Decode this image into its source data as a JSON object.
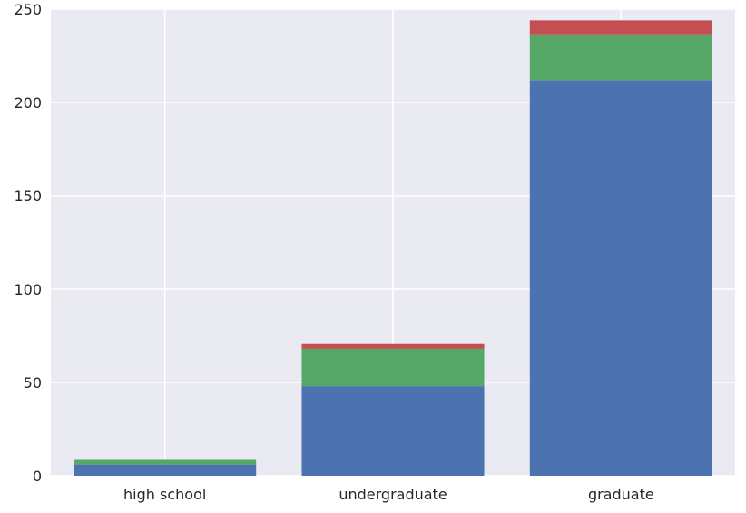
{
  "chart_data": {
    "type": "bar",
    "stacked": true,
    "categories": [
      "high school",
      "undergraduate",
      "graduate"
    ],
    "series": [
      {
        "values": [
          6,
          48,
          212
        ],
        "color": "#4c72b0"
      },
      {
        "values": [
          3,
          20,
          24
        ],
        "color": "#55a868"
      },
      {
        "values": [
          0,
          3,
          8
        ],
        "color": "#c44e52"
      }
    ],
    "ylim": [
      0,
      250
    ],
    "yticks": [
      0,
      50,
      100,
      150,
      200,
      250
    ],
    "grid": true,
    "legend": "none",
    "background_color": "#eaeaf2",
    "grid_color": "#ffffff"
  }
}
